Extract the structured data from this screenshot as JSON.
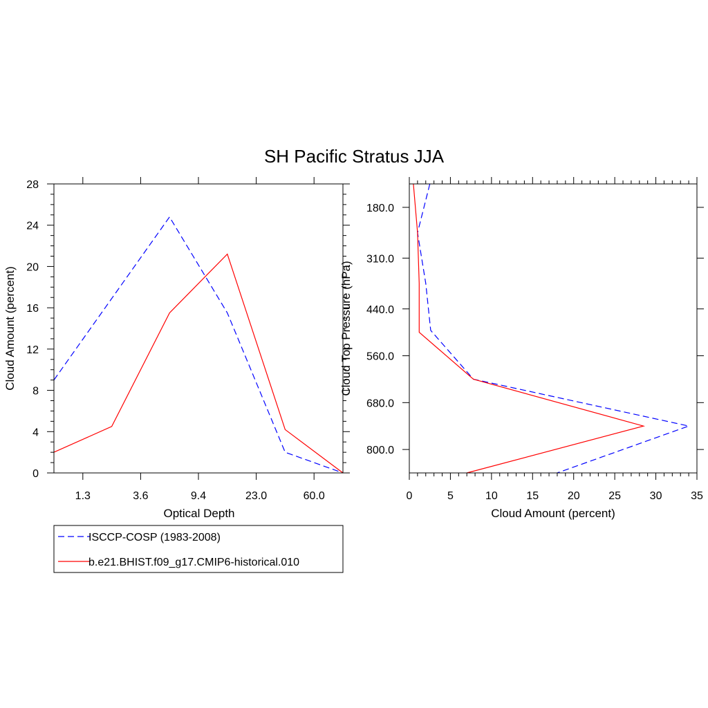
{
  "title": "SH Pacific Stratus JJA",
  "colors": {
    "isccp": "#0000ff",
    "model": "#ff0000",
    "axis": "#000000"
  },
  "legend": {
    "placement": "below-left",
    "entries": [
      {
        "label": "ISCCP-COSP (1983-2008)",
        "style": "dashed",
        "color": "#0000ff"
      },
      {
        "label": "b.e21.BHIST.f09_g17.CMIP6-historical.010",
        "style": "solid",
        "color": "#ff0000"
      }
    ]
  },
  "chart_data": [
    {
      "type": "line",
      "xlabel": "Optical Depth",
      "ylabel": "Cloud Amount (percent)",
      "xlim": [
        0,
        10
      ],
      "ylim": [
        0,
        28
      ],
      "x_ticks": [
        {
          "pos": 1,
          "label": "1.3"
        },
        {
          "pos": 3,
          "label": "3.6"
        },
        {
          "pos": 5,
          "label": "9.4"
        },
        {
          "pos": 7,
          "label": "23.0"
        },
        {
          "pos": 9,
          "label": "60.0"
        }
      ],
      "y_ticks": [
        0,
        4,
        8,
        12,
        16,
        20,
        24,
        28
      ],
      "grid": false,
      "series": [
        {
          "name": "ISCCP-COSP (1983-2008)",
          "style": "dashed",
          "x": [
            0,
            4,
            6,
            8,
            10
          ],
          "y": [
            9.0,
            24.8,
            15.5,
            2.0,
            0.0
          ]
        },
        {
          "name": "b.e21.BHIST.f09_g17.CMIP6-historical.010",
          "style": "solid",
          "x": [
            0,
            2,
            4,
            6,
            8,
            10
          ],
          "y": [
            2.0,
            4.5,
            15.5,
            21.2,
            4.2,
            0.0
          ]
        }
      ]
    },
    {
      "type": "line",
      "xlabel": "Cloud Amount (percent)",
      "ylabel": "Cloud Top Pressure (hPa)",
      "xlim": [
        0,
        35
      ],
      "ylim": [
        120,
        860
      ],
      "y_inverted": true,
      "x_ticks": [
        0,
        5,
        10,
        15,
        20,
        25,
        30,
        35
      ],
      "y_ticks": [
        {
          "value": 180,
          "label": "180.0"
        },
        {
          "value": 310,
          "label": "310.0"
        },
        {
          "value": 440,
          "label": "440.0"
        },
        {
          "value": 560,
          "label": "560.0"
        },
        {
          "value": 680,
          "label": "680.0"
        },
        {
          "value": 800,
          "label": "800.0"
        }
      ],
      "grid": false,
      "series": [
        {
          "name": "ISCCP-COSP (1983-2008)",
          "style": "dashed",
          "x": [
            2.5,
            1.0,
            2.0,
            2.6,
            7.8,
            34.0,
            18.0
          ],
          "y": [
            120,
            245,
            375,
            495,
            620,
            740,
            860
          ]
        },
        {
          "name": "b.e21.BHIST.f09_g17.CMIP6-historical.010",
          "style": "solid",
          "x": [
            0.5,
            1.0,
            1.2,
            1.2,
            7.8,
            28.5,
            7.0
          ],
          "y": [
            120,
            245,
            375,
            500,
            620,
            740,
            860
          ]
        }
      ]
    }
  ]
}
